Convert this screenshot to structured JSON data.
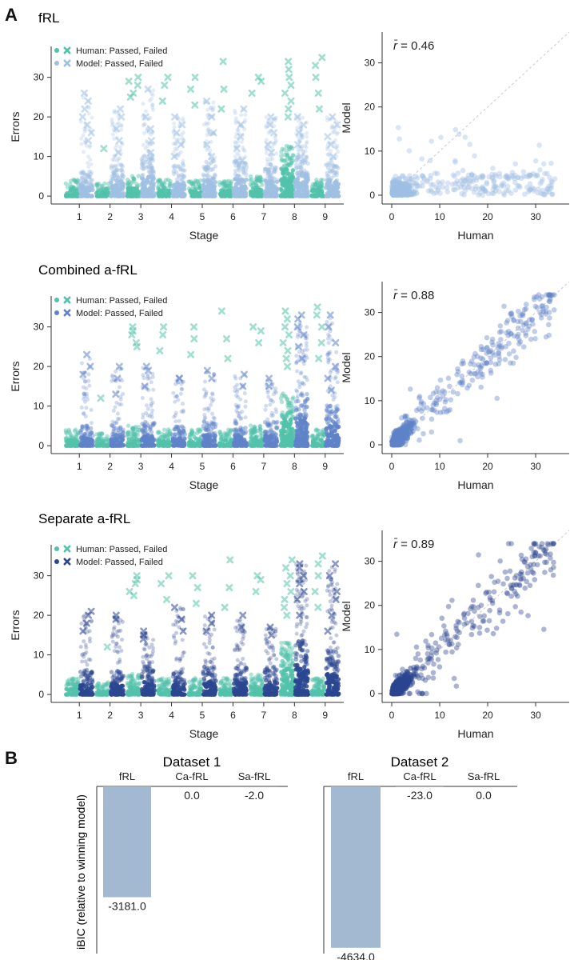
{
  "figure": {
    "panel_a_letter": "A",
    "panel_b_letter": "B"
  },
  "colors": {
    "human": "#52c2aa",
    "fRL": "#9fbfe3",
    "combined": "#5f83c8",
    "separate": "#2c4690",
    "bic_bar": "#a3b8d1",
    "diag": "#c9c9c9"
  },
  "chart_data": [
    {
      "type": "scatter",
      "kind": "strip",
      "title": "fRL",
      "xlabel": "Stage",
      "ylabel": "Errors",
      "categories": [
        "1",
        "2",
        "3",
        "4",
        "5",
        "6",
        "7",
        "8",
        "9"
      ],
      "ylim": [
        -2,
        37
      ],
      "yticks": [
        "0",
        "10",
        "20",
        "30"
      ],
      "legend": {
        "position": "top-left",
        "entries": [
          "Human: Passed, Failed",
          "Model: Passed, Failed"
        ]
      },
      "series": [
        {
          "name": "Human",
          "color_key": "human",
          "passed_max": [
            3,
            2,
            4,
            3,
            3,
            3,
            4,
            12,
            3
          ],
          "failed_values": [
            [],
            [
              12
            ],
            [
              26,
              28,
              29,
              30,
              25
            ],
            [
              24,
              28,
              30
            ],
            [
              23,
              27,
              30
            ],
            [
              22,
              27,
              34
            ],
            [
              26,
              29,
              30
            ],
            [
              20,
              22,
              24,
              26,
              28,
              30,
              32,
              34
            ],
            [
              22,
              26,
              30,
              33,
              35
            ]
          ]
        },
        {
          "name": "Model",
          "color_key": "fRL",
          "passed_max": [
            5,
            7,
            9,
            7,
            8,
            8,
            7,
            9,
            7
          ],
          "failed_values": [
            [
              14,
              16,
              18,
              20,
              22,
              24,
              26
            ],
            [
              11,
              14,
              17,
              20,
              22
            ],
            [
              11,
              14,
              17,
              20,
              27
            ],
            [
              10,
              13,
              16,
              18,
              20
            ],
            [
              10,
              13,
              16,
              20,
              24
            ],
            [
              9,
              12,
              15,
              18,
              22
            ],
            [
              11,
              13,
              16,
              18,
              20
            ],
            [
              10,
              13,
              16,
              18,
              20
            ],
            [
              10,
              13,
              15,
              18,
              20
            ]
          ]
        }
      ]
    },
    {
      "type": "scatter",
      "title": "",
      "xlabel": "Human",
      "ylabel": "Model",
      "annotation_symbol": "r̄",
      "annotation_value": "= 0.46",
      "xlim": [
        -2,
        37
      ],
      "ylim": [
        -2,
        37
      ],
      "ticks": [
        "0",
        "10",
        "20",
        "30"
      ],
      "color_key": "fRL",
      "r": 0.46
    },
    {
      "type": "scatter",
      "kind": "strip",
      "title": "Combined a-fRL",
      "xlabel": "Stage",
      "ylabel": "Errors",
      "categories": [
        "1",
        "2",
        "3",
        "4",
        "5",
        "6",
        "7",
        "8",
        "9"
      ],
      "ylim": [
        -2,
        37
      ],
      "yticks": [
        "0",
        "10",
        "20",
        "30"
      ],
      "legend": {
        "position": "top-left",
        "entries": [
          "Human: Passed, Failed",
          "Model: Passed, Failed"
        ]
      },
      "series": [
        {
          "name": "Human",
          "color_key": "human",
          "passed_max": [
            3,
            2,
            4,
            3,
            3,
            3,
            4,
            12,
            3
          ],
          "failed_values": [
            [],
            [
              12
            ],
            [
              26,
              28,
              29,
              30,
              25
            ],
            [
              24,
              28,
              30
            ],
            [
              23,
              27,
              30
            ],
            [
              22,
              27,
              34
            ],
            [
              26,
              29,
              30
            ],
            [
              20,
              22,
              24,
              26,
              28,
              30,
              32,
              34
            ],
            [
              22,
              26,
              30,
              33,
              35
            ]
          ]
        },
        {
          "name": "Model",
          "color_key": "combined",
          "passed_max": [
            4,
            4,
            5,
            4,
            5,
            5,
            5,
            12,
            9
          ],
          "failed_values": [
            [
              18,
              20,
              23
            ],
            [
              13,
              17,
              20
            ],
            [
              15,
              19,
              20
            ],
            [
              17,
              17
            ],
            [
              17,
              19
            ],
            [
              15,
              18
            ],
            [
              15,
              17
            ],
            [
              22,
              25,
              28,
              30,
              32,
              33
            ],
            [
              14,
              17,
              20,
              26,
              30,
              33
            ]
          ]
        }
      ]
    },
    {
      "type": "scatter",
      "title": "",
      "xlabel": "Human",
      "ylabel": "Model",
      "annotation_symbol": "r̄",
      "annotation_value": "= 0.88",
      "xlim": [
        -2,
        37
      ],
      "ylim": [
        -2,
        37
      ],
      "ticks": [
        "0",
        "10",
        "20",
        "30"
      ],
      "color_key": "combined",
      "r": 0.88
    },
    {
      "type": "scatter",
      "kind": "strip",
      "title": "Separate a-fRL",
      "xlabel": "Stage",
      "ylabel": "Errors",
      "categories": [
        "1",
        "2",
        "3",
        "4",
        "5",
        "6",
        "7",
        "8",
        "9"
      ],
      "ylim": [
        -2,
        37
      ],
      "yticks": [
        "0",
        "10",
        "20",
        "30"
      ],
      "legend": {
        "position": "top-left",
        "entries": [
          "Human: Passed, Failed",
          "Model: Passed, Failed"
        ]
      },
      "series": [
        {
          "name": "Human",
          "color_key": "human",
          "passed_max": [
            3,
            2,
            4,
            3,
            3,
            3,
            4,
            12,
            3
          ],
          "failed_values": [
            [],
            [
              12
            ],
            [
              26,
              28,
              29,
              30,
              25
            ],
            [
              24,
              28,
              30
            ],
            [
              23,
              27,
              30
            ],
            [
              22,
              27,
              34
            ],
            [
              26,
              29,
              30
            ],
            [
              20,
              22,
              24,
              26,
              28,
              30,
              32,
              34
            ],
            [
              22,
              26,
              30,
              33,
              35
            ]
          ]
        },
        {
          "name": "Model",
          "color_key": "separate",
          "passed_max": [
            5,
            5,
            6,
            5,
            6,
            6,
            6,
            13,
            10
          ],
          "failed_values": [
            [
              16,
              18,
              20,
              21
            ],
            [
              19,
              20
            ],
            [
              14,
              15,
              16
            ],
            [
              16,
              19,
              22
            ],
            [
              16,
              18,
              20
            ],
            [
              17,
              20
            ],
            [
              15,
              17
            ],
            [
              20,
              24,
              26,
              28,
              30,
              32,
              33
            ],
            [
              16,
              20,
              24,
              26,
              30,
              33
            ]
          ]
        }
      ]
    },
    {
      "type": "scatter",
      "title": "",
      "xlabel": "Human",
      "ylabel": "Model",
      "annotation_symbol": "r̄",
      "annotation_value": "= 0.89",
      "xlim": [
        -2,
        37
      ],
      "ylim": [
        -2,
        37
      ],
      "ticks": [
        "0",
        "10",
        "20",
        "30"
      ],
      "color_key": "separate",
      "r": 0.89
    },
    {
      "type": "bar",
      "title": "Dataset 1",
      "ylabel": "iBIC (relative to winning model)",
      "categories": [
        "fRL",
        "Ca-fRL",
        "Sa-fRL"
      ],
      "values": [
        -3181.0,
        0.0,
        -2.0
      ],
      "labels": [
        "-3181.0",
        "0.0",
        "-2.0"
      ],
      "ylim": [
        -4800,
        0
      ]
    },
    {
      "type": "bar",
      "title": "Dataset 2",
      "ylabel": "",
      "categories": [
        "fRL",
        "Ca-fRL",
        "Sa-fRL"
      ],
      "values": [
        -4634.0,
        -23.0,
        0.0
      ],
      "labels": [
        "-4634.0",
        "-23.0",
        "0.0"
      ],
      "ylim": [
        -4800,
        0
      ]
    }
  ]
}
